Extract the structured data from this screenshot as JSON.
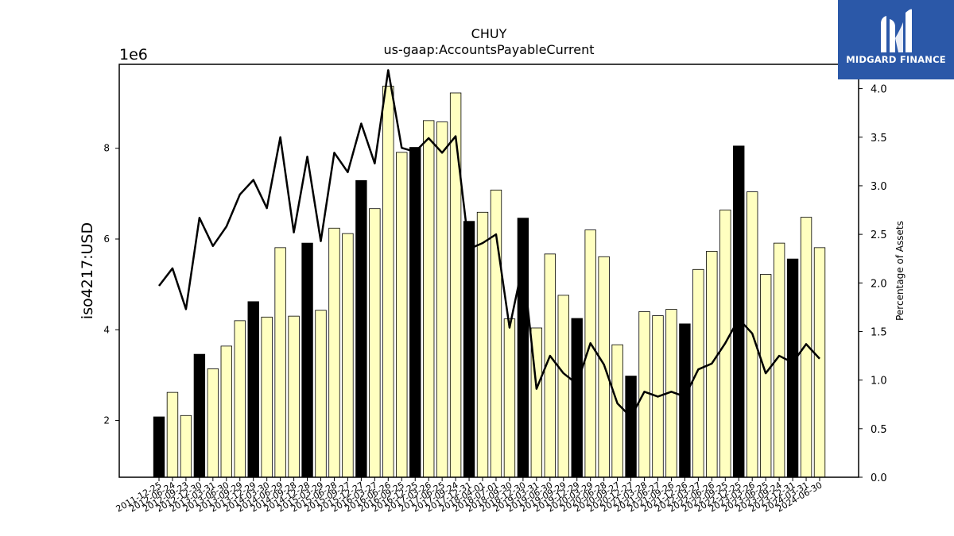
{
  "chart_data": {
    "type": "bar",
    "title": "CHUY",
    "subtitle": "us-gaap:AccountsPayableCurrent",
    "ylabel": "iso4217:USD",
    "y_scale_label": "1e6",
    "y2label": "Percentage of Assets",
    "ylim": [
      0.75,
      9.85
    ],
    "y2lim": [
      0,
      4.25
    ],
    "yticks": [
      2,
      4,
      6,
      8
    ],
    "y2ticks": [
      0.0,
      0.5,
      1.0,
      1.5,
      2.0,
      2.5,
      3.0,
      3.5,
      4.0
    ],
    "categories": [
      "2011-12-25",
      "2012-06-24",
      "2012-09-23",
      "2012-12-30",
      "2013-03-31",
      "2013-06-30",
      "2013-09-29",
      "2013-12-29",
      "2014-03-30",
      "2014-06-29",
      "2014-09-28",
      "2014-12-28",
      "2015-03-29",
      "2015-06-28",
      "2015-09-27",
      "2015-12-27",
      "2016-03-27",
      "2016-06-26",
      "2016-09-25",
      "2016-12-25",
      "2017-03-26",
      "2017-06-25",
      "2017-09-24",
      "2017-12-31",
      "2018-04-01",
      "2018-07-01",
      "2018-09-30",
      "2018-12-30",
      "2019-03-31",
      "2019-06-30",
      "2019-09-29",
      "2019-12-29",
      "2020-03-29",
      "2020-06-28",
      "2020-09-27",
      "2020-12-27",
      "2021-03-28",
      "2021-06-27",
      "2021-09-26",
      "2021-12-26",
      "2022-03-27",
      "2022-06-26",
      "2022-09-25",
      "2022-12-25",
      "2023-03-26",
      "2023-06-25",
      "2023-09-24",
      "2023-12-31",
      "2024-03-31",
      "2024-06-30"
    ],
    "series": [
      {
        "type": "bar",
        "values": [
          2.08,
          2.62,
          2.11,
          3.46,
          3.14,
          3.64,
          4.2,
          4.62,
          4.28,
          5.81,
          4.3,
          5.91,
          4.43,
          6.24,
          6.12,
          7.29,
          6.67,
          9.37,
          7.91,
          8.02,
          8.61,
          8.58,
          9.22,
          6.39,
          6.59,
          7.08,
          4.24,
          6.46,
          4.04,
          5.67,
          4.76,
          4.25,
          6.2,
          5.61,
          3.67,
          2.98,
          4.4,
          4.31,
          4.45,
          4.13,
          5.33,
          5.73,
          6.64,
          8.05,
          7.04,
          5.22,
          5.91,
          5.56,
          6.48,
          5.81
        ],
        "highlight": [
          true,
          false,
          false,
          true,
          false,
          false,
          false,
          true,
          false,
          false,
          false,
          true,
          false,
          false,
          false,
          true,
          false,
          false,
          false,
          true,
          false,
          false,
          false,
          true,
          false,
          false,
          false,
          true,
          false,
          false,
          false,
          true,
          false,
          false,
          false,
          true,
          false,
          false,
          false,
          true,
          false,
          false,
          false,
          true,
          false,
          false,
          false,
          true,
          false,
          false
        ]
      },
      {
        "type": "line",
        "axis": "right",
        "values": [
          1.97,
          2.15,
          1.73,
          2.67,
          2.38,
          2.58,
          2.91,
          3.06,
          2.77,
          3.5,
          2.52,
          3.3,
          2.43,
          3.34,
          3.14,
          3.64,
          3.23,
          4.19,
          3.39,
          3.35,
          3.49,
          3.34,
          3.51,
          2.35,
          2.41,
          2.5,
          1.54,
          2.2,
          0.91,
          1.25,
          1.07,
          0.96,
          1.38,
          1.16,
          0.76,
          0.62,
          0.88,
          0.83,
          0.88,
          0.83,
          1.11,
          1.17,
          1.38,
          1.63,
          1.48,
          1.07,
          1.25,
          1.18,
          1.37,
          1.22
        ]
      }
    ],
    "colors": {
      "bar_fill": "#ffffc0",
      "bar_highlight": "#000000",
      "bar_edge": "#000000",
      "line": "#000000"
    },
    "grid": false
  },
  "watermark": {
    "text": "MIDGARD FINANCE",
    "icon": "midgard-logo-icon",
    "background": "#2b58a8"
  }
}
